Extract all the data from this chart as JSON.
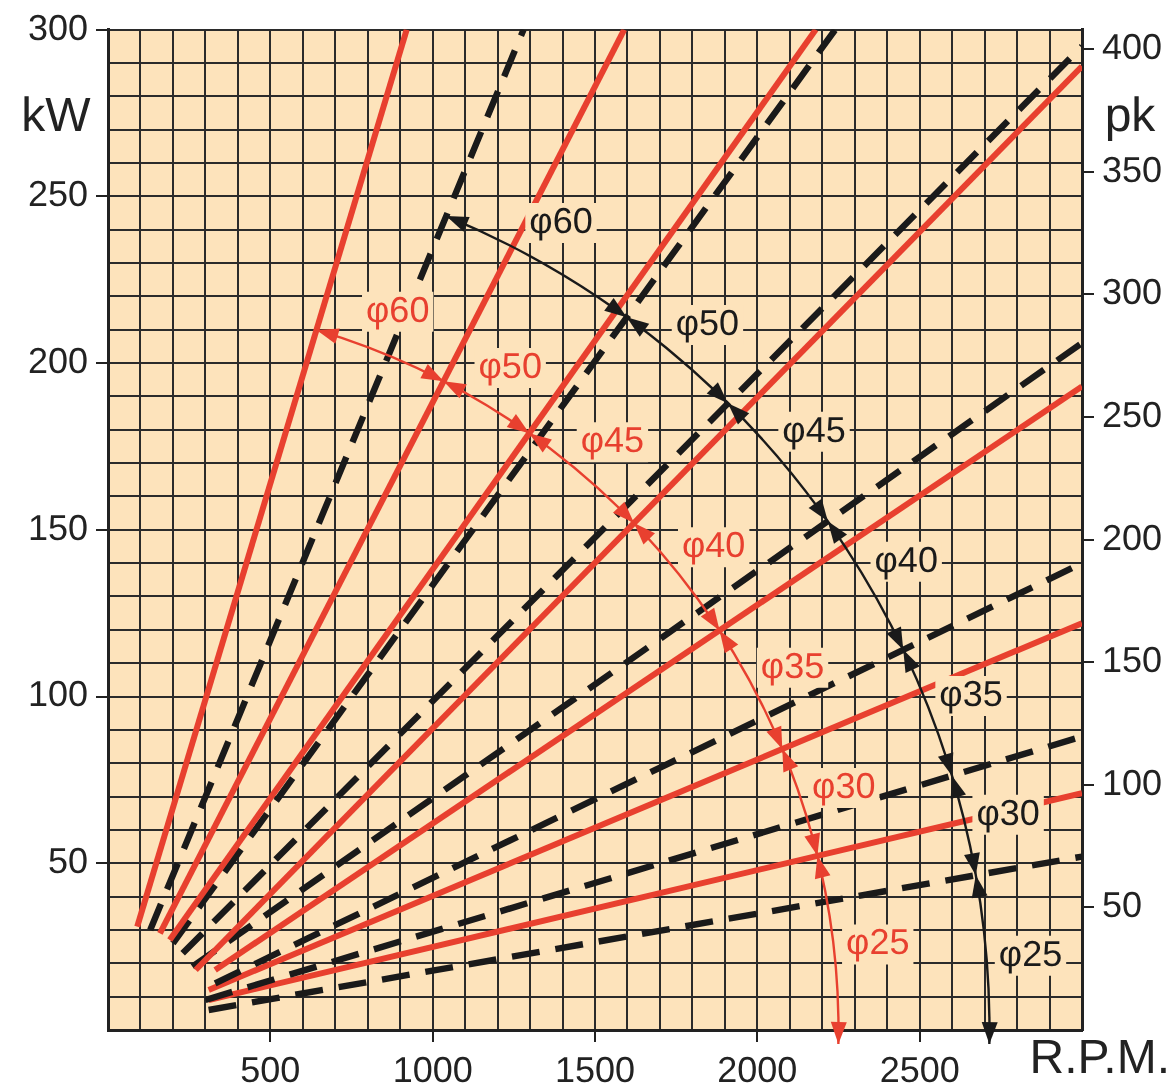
{
  "chart_data": {
    "type": "line",
    "xlabel": "R.P.M.",
    "ylabel": "kW",
    "y2label": "pk",
    "marker": "none",
    "grid": true,
    "xlim": [
      0,
      3000
    ],
    "xticks": [
      {
        "value": 100,
        "label": null
      },
      {
        "value": 200,
        "label": null
      },
      {
        "value": 300,
        "label": null
      },
      {
        "value": 400,
        "label": null
      },
      500,
      {
        "value": 600,
        "label": null
      },
      {
        "value": 700,
        "label": null
      },
      {
        "value": 800,
        "label": null
      },
      {
        "value": 900,
        "label": null
      },
      1000,
      {
        "value": 1100,
        "label": null
      },
      {
        "value": 1200,
        "label": null
      },
      {
        "value": 1300,
        "label": null
      },
      {
        "value": 1400,
        "label": null
      },
      1500,
      {
        "value": 1600,
        "label": null
      },
      {
        "value": 1700,
        "label": null
      },
      {
        "value": 1800,
        "label": null
      },
      {
        "value": 1900,
        "label": null
      },
      2000,
      {
        "value": 2100,
        "label": null
      },
      {
        "value": 2200,
        "label": null
      },
      {
        "value": 2300,
        "label": null
      },
      {
        "value": 2400,
        "label": null
      },
      2500,
      {
        "value": 2600,
        "label": null
      },
      {
        "value": 2700,
        "label": null
      },
      {
        "value": 2800,
        "label": null
      },
      {
        "value": 2900,
        "label": null
      }
    ],
    "ylim": [
      0,
      300
    ],
    "yticks": [
      {
        "value": 10,
        "label": null
      },
      {
        "value": 20,
        "label": null
      },
      {
        "value": 30,
        "label": null
      },
      {
        "value": 40,
        "label": null
      },
      50,
      {
        "value": 60,
        "label": null
      },
      {
        "value": 70,
        "label": null
      },
      {
        "value": 80,
        "label": null
      },
      {
        "value": 90,
        "label": null
      },
      100,
      {
        "value": 110,
        "label": null
      },
      {
        "value": 120,
        "label": null
      },
      {
        "value": 130,
        "label": null
      },
      {
        "value": 140,
        "label": null
      },
      150,
      {
        "value": 160,
        "label": null
      },
      {
        "value": 170,
        "label": null
      },
      {
        "value": 180,
        "label": null
      },
      {
        "value": 190,
        "label": null
      },
      200,
      {
        "value": 210,
        "label": null
      },
      {
        "value": 220,
        "label": null
      },
      {
        "value": 230,
        "label": null
      },
      {
        "value": 240,
        "label": null
      },
      250,
      {
        "value": 260,
        "label": null
      },
      {
        "value": 270,
        "label": null
      },
      {
        "value": 280,
        "label": null
      },
      {
        "value": 290,
        "label": null
      },
      300
    ],
    "y2lim": [
      0,
      408
    ],
    "y2ticks": [
      50,
      100,
      150,
      200,
      250,
      300,
      350,
      400
    ],
    "series": [
      {
        "color": "#e8402f",
        "line_style": "solid",
        "x": [
          90,
          920
        ],
        "values": [
          31,
          300
        ]
      },
      {
        "color": "#1a1a1a",
        "line_style": "dashed",
        "x": [
          130,
          1280
        ],
        "values": [
          30,
          300
        ]
      },
      {
        "color": "#e8402f",
        "line_style": "solid",
        "x": [
          160,
          1590
        ],
        "values": [
          29,
          300
        ]
      },
      {
        "color": "#e8402f",
        "line_style": "solid",
        "x": [
          190,
          2180
        ],
        "values": [
          27,
          300
        ]
      },
      {
        "color": "#1a1a1a",
        "line_style": "dashed",
        "x": [
          200,
          2240
        ],
        "values": [
          26,
          300
        ]
      },
      {
        "color": "#1a1a1a",
        "line_style": "dashed",
        "x": [
          230,
          3000
        ],
        "values": [
          23,
          295
        ]
      },
      {
        "color": "#e8402f",
        "line_style": "solid",
        "x": [
          270,
          3000
        ],
        "values": [
          18,
          289
        ]
      },
      {
        "color": "#1a1a1a",
        "line_style": "dashed",
        "x": [
          260,
          3000
        ],
        "values": [
          19,
          206
        ]
      },
      {
        "color": "#e8402f",
        "line_style": "solid",
        "x": [
          330,
          3000
        ],
        "values": [
          18,
          193
        ]
      },
      {
        "color": "#1a1a1a",
        "line_style": "dashed",
        "x": [
          330,
          3000
        ],
        "values": [
          14,
          140
        ]
      },
      {
        "color": "#e8402f",
        "line_style": "solid",
        "x": [
          310,
          3000
        ],
        "values": [
          12,
          122
        ]
      },
      {
        "color": "#1a1a1a",
        "line_style": "dashed",
        "x": [
          300,
          3000
        ],
        "values": [
          9,
          88
        ]
      },
      {
        "color": "#e8402f",
        "line_style": "solid",
        "x": [
          310,
          3000
        ],
        "values": [
          9,
          71
        ]
      },
      {
        "color": "#1a1a1a",
        "line_style": "dashed",
        "x": [
          310,
          3000
        ],
        "values": [
          6,
          52
        ]
      }
    ],
    "annotations": [
      "φ60",
      "φ60",
      "φ50",
      "φ45",
      "φ50",
      "φ45",
      "φ40",
      "φ40",
      "φ35",
      "φ35",
      "φ30",
      "φ30",
      "φ25",
      "φ25"
    ]
  }
}
